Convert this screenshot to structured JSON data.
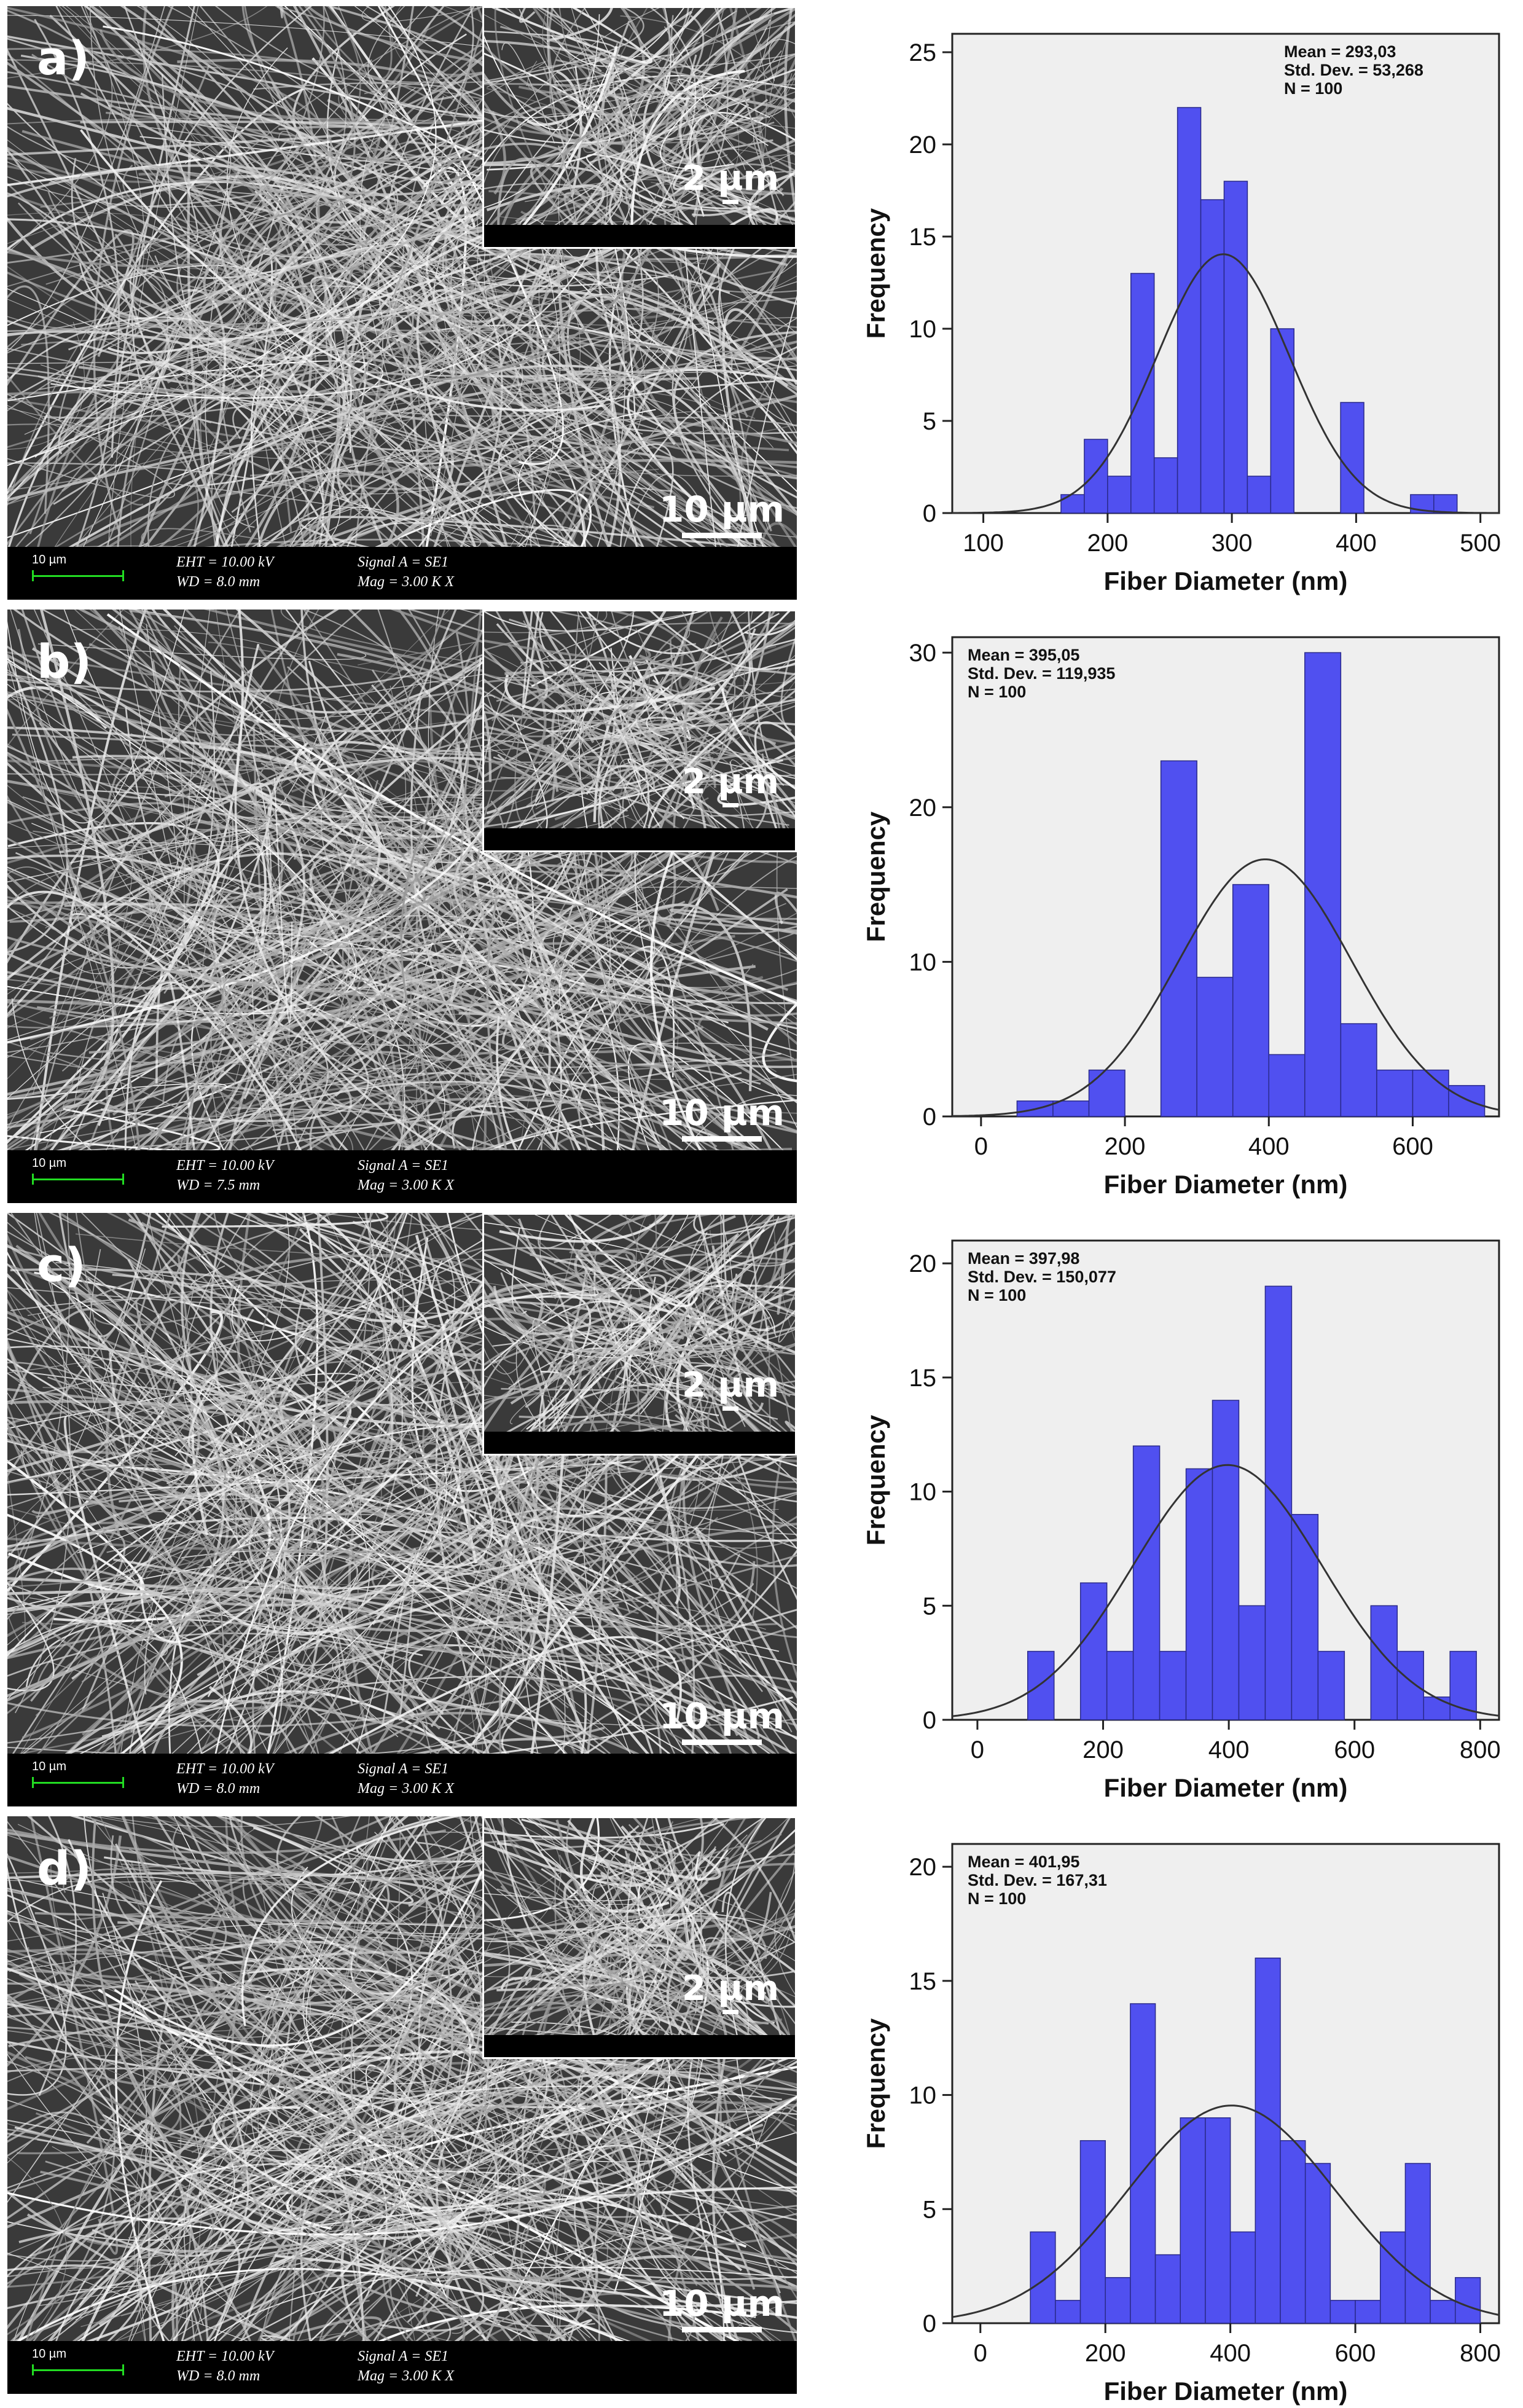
{
  "panels": [
    {
      "letter": "a)",
      "main_scale": "10 µm",
      "inset_scale": "2 µm",
      "bar_scale": "10 µm",
      "eht": "EHT = 10.00 kV",
      "wd": "WD =  8.0 mm",
      "signal": "Signal A = SE1",
      "mag": "Mag =     3.00 K X"
    },
    {
      "letter": "b)",
      "main_scale": "10 µm",
      "inset_scale": "2 µm",
      "bar_scale": "10 µm",
      "eht": "EHT = 10.00 kV",
      "wd": "WD =  7.5 mm",
      "signal": "Signal A = SE1",
      "mag": "Mag =     3.00 K X"
    },
    {
      "letter": "c)",
      "main_scale": "10 µm",
      "inset_scale": "2 µm",
      "bar_scale": "10 µm",
      "eht": "EHT = 10.00 kV",
      "wd": "WD =  8.0 mm",
      "signal": "Signal A = SE1",
      "mag": "Mag =     3.00 K X"
    },
    {
      "letter": "d)",
      "main_scale": "10 µm",
      "inset_scale": "2 µm",
      "bar_scale": "10 µm",
      "eht": "EHT = 10.00 kV",
      "wd": "WD =  8.0 mm",
      "signal": "Signal A = SE1",
      "mag": "Mag =     3.00 K X"
    }
  ],
  "colors": {
    "bar_fill": "#5050f0",
    "bar_stroke": "#2a2a8a",
    "plot_background": "#efefef",
    "curve": "#333333"
  },
  "chart_data": [
    {
      "type": "bar",
      "xlabel": "Fiber Diameter (nm)",
      "ylabel": "Frequency",
      "xlim": [
        75,
        515
      ],
      "ylim": [
        0,
        26
      ],
      "xticks": [
        100,
        200,
        300,
        400,
        500
      ],
      "yticks": [
        0,
        5,
        10,
        15,
        20,
        25
      ],
      "legend_position": "top-right",
      "stats": [
        "Mean = 293,03",
        "Std. Dev. = 53,268",
        "N = 100"
      ],
      "mean": 293.03,
      "std": 53.268,
      "n": 100,
      "bin_width": 18.75,
      "bin_starts": [
        162.5,
        181.25,
        200,
        218.75,
        237.5,
        256.25,
        275,
        293.75,
        312.5,
        331.25,
        350,
        368.75,
        387.5,
        406.25,
        425,
        443.75,
        462.5
      ],
      "values": [
        1,
        4,
        2,
        13,
        3,
        22,
        17,
        18,
        2,
        10,
        0,
        0,
        6,
        0,
        0,
        1,
        1
      ]
    },
    {
      "type": "bar",
      "xlabel": "Fiber Diameter (nm)",
      "ylabel": "Frequency",
      "xlim": [
        -40,
        720
      ],
      "ylim": [
        0,
        31
      ],
      "xticks": [
        0,
        200,
        400,
        600
      ],
      "yticks": [
        0,
        10,
        20,
        30
      ],
      "legend_position": "top-left",
      "stats": [
        "Mean = 395,05",
        "Std. Dev. = 119,935",
        "N = 100"
      ],
      "mean": 395.05,
      "std": 119.935,
      "n": 100,
      "bin_width": 50,
      "bin_starts": [
        50,
        100,
        150,
        200,
        250,
        300,
        350,
        400,
        450,
        500,
        550,
        600,
        650
      ],
      "values": [
        1,
        1,
        3,
        0,
        23,
        9,
        15,
        4,
        30,
        6,
        3,
        3,
        2
      ]
    },
    {
      "type": "bar",
      "xlabel": "Fiber Diameter (nm)",
      "ylabel": "Frequency",
      "xlim": [
        -40,
        830
      ],
      "ylim": [
        0,
        21
      ],
      "xticks": [
        0,
        200,
        400,
        600,
        800
      ],
      "yticks": [
        0,
        5,
        10,
        15,
        20
      ],
      "legend_position": "top-left",
      "stats": [
        "Mean = 397,98",
        "Std. Dev. = 150,077",
        "N = 100"
      ],
      "mean": 397.98,
      "std": 150.077,
      "n": 100,
      "bin_width": 42,
      "bin_starts": [
        80,
        122,
        164,
        206,
        248,
        290,
        332,
        374,
        416,
        458,
        500,
        542,
        584,
        626,
        668,
        710,
        752
      ],
      "values": [
        3,
        0,
        6,
        3,
        12,
        3,
        11,
        14,
        5,
        19,
        9,
        3,
        0,
        5,
        3,
        1,
        3
      ]
    },
    {
      "type": "bar",
      "xlabel": "Fiber Diameter (nm)",
      "ylabel": "Frequency",
      "xlim": [
        -45,
        830
      ],
      "ylim": [
        0,
        21
      ],
      "xticks": [
        0,
        200,
        400,
        600,
        800
      ],
      "yticks": [
        0,
        5,
        10,
        15,
        20
      ],
      "legend_position": "top-left",
      "stats": [
        "Mean = 401,95",
        "Std. Dev. = 167,31",
        "N = 100"
      ],
      "mean": 401.95,
      "std": 167.31,
      "n": 100,
      "bin_width": 40,
      "bin_starts": [
        80,
        120,
        160,
        200,
        240,
        280,
        320,
        360,
        400,
        440,
        480,
        520,
        560,
        600,
        640,
        680,
        720,
        760
      ],
      "values": [
        4,
        1,
        8,
        2,
        14,
        3,
        9,
        9,
        4,
        16,
        8,
        7,
        1,
        1,
        4,
        7,
        1,
        2
      ]
    }
  ]
}
